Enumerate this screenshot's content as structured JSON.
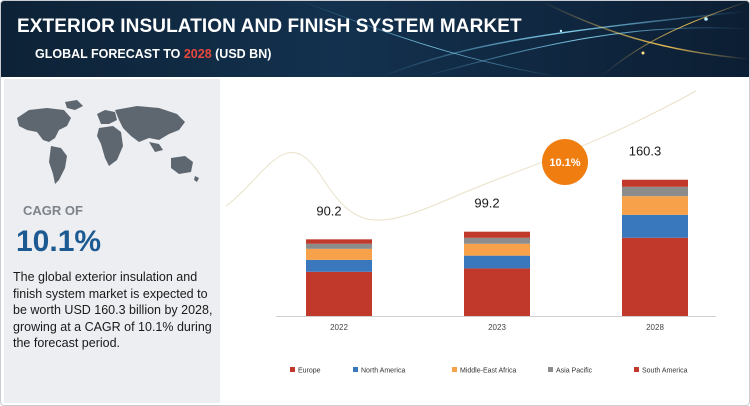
{
  "header": {
    "title": "EXTERIOR INSULATION AND FINISH SYSTEM MARKET",
    "subtitle_prefix": "GLOBAL FORECAST TO ",
    "subtitle_year": "2028",
    "subtitle_suffix": " (USD BN)"
  },
  "summary": {
    "cagr_label": "CAGR OF",
    "cagr_value": "10.1%",
    "description": "The global exterior insulation and finish system market is expected to be worth USD 160.3 billion by 2028, growing at a CAGR of 10.1% during the forecast period."
  },
  "chart_data": {
    "type": "bar",
    "stacked": true,
    "categories": [
      "2022",
      "2023",
      "2028"
    ],
    "totals": [
      90.2,
      99.2,
      160.3
    ],
    "series": [
      {
        "name": "Europe",
        "color": "#c0392b",
        "values": [
          52,
          56,
          92
        ]
      },
      {
        "name": "North America",
        "color": "#3a78bd",
        "values": [
          14,
          15,
          27
        ]
      },
      {
        "name": "Middle-East Africa",
        "color": "#f7a24b",
        "values": [
          13,
          14,
          22
        ]
      },
      {
        "name": "Asia Pacific",
        "color": "#8c8c8c",
        "values": [
          6,
          7,
          11
        ]
      },
      {
        "name": "South America",
        "color": "#c0392b",
        "values": [
          5.2,
          7.2,
          8.3
        ]
      }
    ],
    "annotation": "10.1%",
    "ylim": [
      0,
      180
    ],
    "grid": false,
    "legend_position": "bottom"
  },
  "colors": {
    "banner": "#13314e",
    "accent_blue": "#1d5a92",
    "accent_orange": "#f07d10",
    "accent_red": "#e8473c"
  }
}
